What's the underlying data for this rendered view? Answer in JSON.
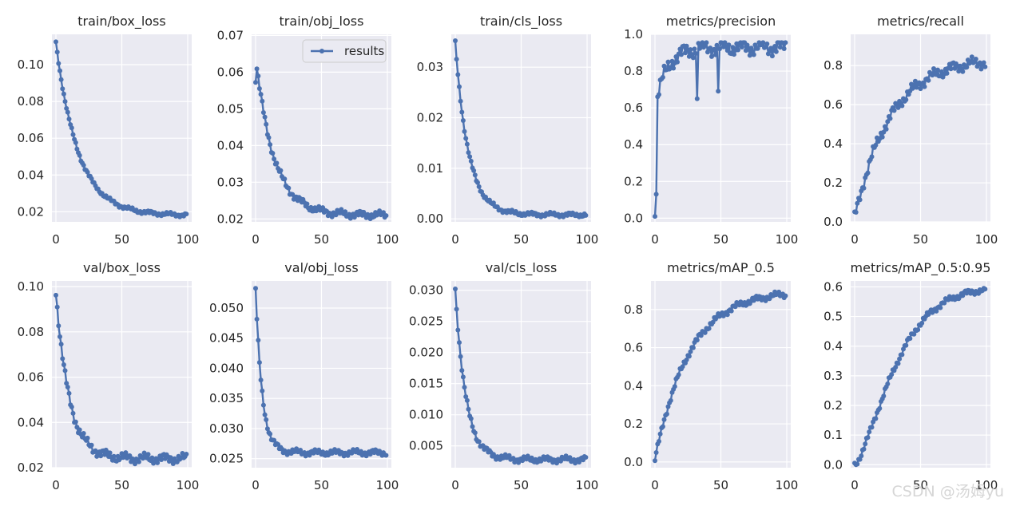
{
  "chart_data": [
    {
      "type": "line",
      "title": "train/box_loss",
      "xlim": [
        0,
        100
      ],
      "ylim": [
        0.0145,
        0.1165
      ],
      "yticks": [
        0.02,
        0.04,
        0.06,
        0.08,
        0.1
      ],
      "ytick_labels": [
        "0.02",
        "0.04",
        "0.06",
        "0.08",
        "0.10"
      ],
      "xticks": [
        0,
        50,
        100
      ],
      "xtick_labels": [
        "0",
        "50",
        "100"
      ],
      "series": [
        {
          "name": "results",
          "values": []
        }
      ]
    },
    {
      "type": "line",
      "title": "train/obj_loss",
      "xlim": [
        0,
        100
      ],
      "ylim": [
        0.0192,
        0.0703
      ],
      "yticks": [
        0.02,
        0.03,
        0.04,
        0.05,
        0.06,
        0.07
      ],
      "ytick_labels": [
        "0.02",
        "0.03",
        "0.04",
        "0.05",
        "0.06",
        "0.07"
      ],
      "xticks": [
        0,
        50,
        100
      ],
      "xtick_labels": [
        "0",
        "50",
        "100"
      ],
      "legend": "top-right",
      "series": [
        {
          "name": "results",
          "values": []
        }
      ]
    },
    {
      "type": "line",
      "title": "train/cls_loss",
      "xlim": [
        0,
        100
      ],
      "ylim": [
        -0.0006,
        0.0365
      ],
      "yticks": [
        0.0,
        0.01,
        0.02,
        0.03
      ],
      "ytick_labels": [
        "0.00",
        "0.01",
        "0.02",
        "0.03"
      ],
      "xticks": [
        0,
        50,
        100
      ],
      "xtick_labels": [
        "0",
        "50",
        "100"
      ],
      "series": [
        {
          "name": "results",
          "values": []
        }
      ]
    },
    {
      "type": "line",
      "title": "metrics/precision",
      "xlim": [
        0,
        100
      ],
      "ylim": [
        -0.02,
        1.0
      ],
      "yticks": [
        0.0,
        0.2,
        0.4,
        0.6,
        0.8,
        1.0
      ],
      "ytick_labels": [
        "0.0",
        "0.2",
        "0.4",
        "0.6",
        "0.8",
        "1.0"
      ],
      "xticks": [
        0,
        50,
        100
      ],
      "xtick_labels": [
        "0",
        "50",
        "100"
      ],
      "series": [
        {
          "name": "results",
          "values": []
        }
      ]
    },
    {
      "type": "line",
      "title": "metrics/recall",
      "xlim": [
        0,
        100
      ],
      "ylim": [
        0.0,
        0.96
      ],
      "yticks": [
        0.0,
        0.2,
        0.4,
        0.6,
        0.8
      ],
      "ytick_labels": [
        "0.0",
        "0.2",
        "0.4",
        "0.6",
        "0.8"
      ],
      "xticks": [
        0,
        50,
        100
      ],
      "xtick_labels": [
        "0",
        "50",
        "100"
      ],
      "series": [
        {
          "name": "results",
          "values": []
        }
      ]
    },
    {
      "type": "line",
      "title": "val/box_loss",
      "xlim": [
        0,
        100
      ],
      "ylim": [
        0.02,
        0.1025
      ],
      "yticks": [
        0.02,
        0.04,
        0.06,
        0.08,
        0.1
      ],
      "ytick_labels": [
        "0.02",
        "0.04",
        "0.06",
        "0.08",
        "0.10"
      ],
      "xticks": [
        0,
        50,
        100
      ],
      "xtick_labels": [
        "0",
        "50",
        "100"
      ],
      "series": [
        {
          "name": "results",
          "values": []
        }
      ]
    },
    {
      "type": "line",
      "title": "val/obj_loss",
      "xlim": [
        0,
        100
      ],
      "ylim": [
        0.0235,
        0.0545
      ],
      "yticks": [
        0.025,
        0.03,
        0.035,
        0.04,
        0.045,
        0.05
      ],
      "ytick_labels": [
        "0.025",
        "0.030",
        "0.035",
        "0.040",
        "0.045",
        "0.050"
      ],
      "xticks": [
        0,
        50,
        100
      ],
      "xtick_labels": [
        "0",
        "50",
        "100"
      ],
      "series": [
        {
          "name": "results",
          "values": []
        }
      ]
    },
    {
      "type": "line",
      "title": "val/cls_loss",
      "xlim": [
        0,
        100
      ],
      "ylim": [
        0.0015,
        0.0315
      ],
      "yticks": [
        0.005,
        0.01,
        0.015,
        0.02,
        0.025,
        0.03
      ],
      "ytick_labels": [
        "0.005",
        "0.010",
        "0.015",
        "0.020",
        "0.025",
        "0.030"
      ],
      "xticks": [
        0,
        50,
        100
      ],
      "xtick_labels": [
        "0",
        "50",
        "100"
      ],
      "series": [
        {
          "name": "results",
          "values": []
        }
      ]
    },
    {
      "type": "line",
      "title": "metrics/mAP_0.5",
      "xlim": [
        0,
        100
      ],
      "ylim": [
        -0.03,
        0.95
      ],
      "yticks": [
        0.0,
        0.2,
        0.4,
        0.6,
        0.8
      ],
      "ytick_labels": [
        "0.0",
        "0.2",
        "0.4",
        "0.6",
        "0.8"
      ],
      "xticks": [
        0,
        50,
        100
      ],
      "xtick_labels": [
        "0",
        "50",
        "100"
      ],
      "series": [
        {
          "name": "results",
          "values": []
        }
      ]
    },
    {
      "type": "line",
      "title": "metrics/mAP_0.5:0.95",
      "xlim": [
        0,
        100
      ],
      "ylim": [
        -0.01,
        0.62
      ],
      "yticks": [
        0.0,
        0.1,
        0.2,
        0.3,
        0.4,
        0.5,
        0.6
      ],
      "ytick_labels": [
        "0.0",
        "0.1",
        "0.2",
        "0.3",
        "0.4",
        "0.5",
        "0.6"
      ],
      "xticks": [
        0,
        50,
        100
      ],
      "xtick_labels": [
        "0",
        "50",
        "100"
      ],
      "series": [
        {
          "name": "results",
          "values": []
        }
      ]
    }
  ],
  "legend_label": "results",
  "watermark": "CSDN @汤姆yu",
  "colors": {
    "line": "#4c72b0",
    "axes_bg": "#eaeaf2",
    "grid": "#ffffff",
    "text": "#262626"
  }
}
